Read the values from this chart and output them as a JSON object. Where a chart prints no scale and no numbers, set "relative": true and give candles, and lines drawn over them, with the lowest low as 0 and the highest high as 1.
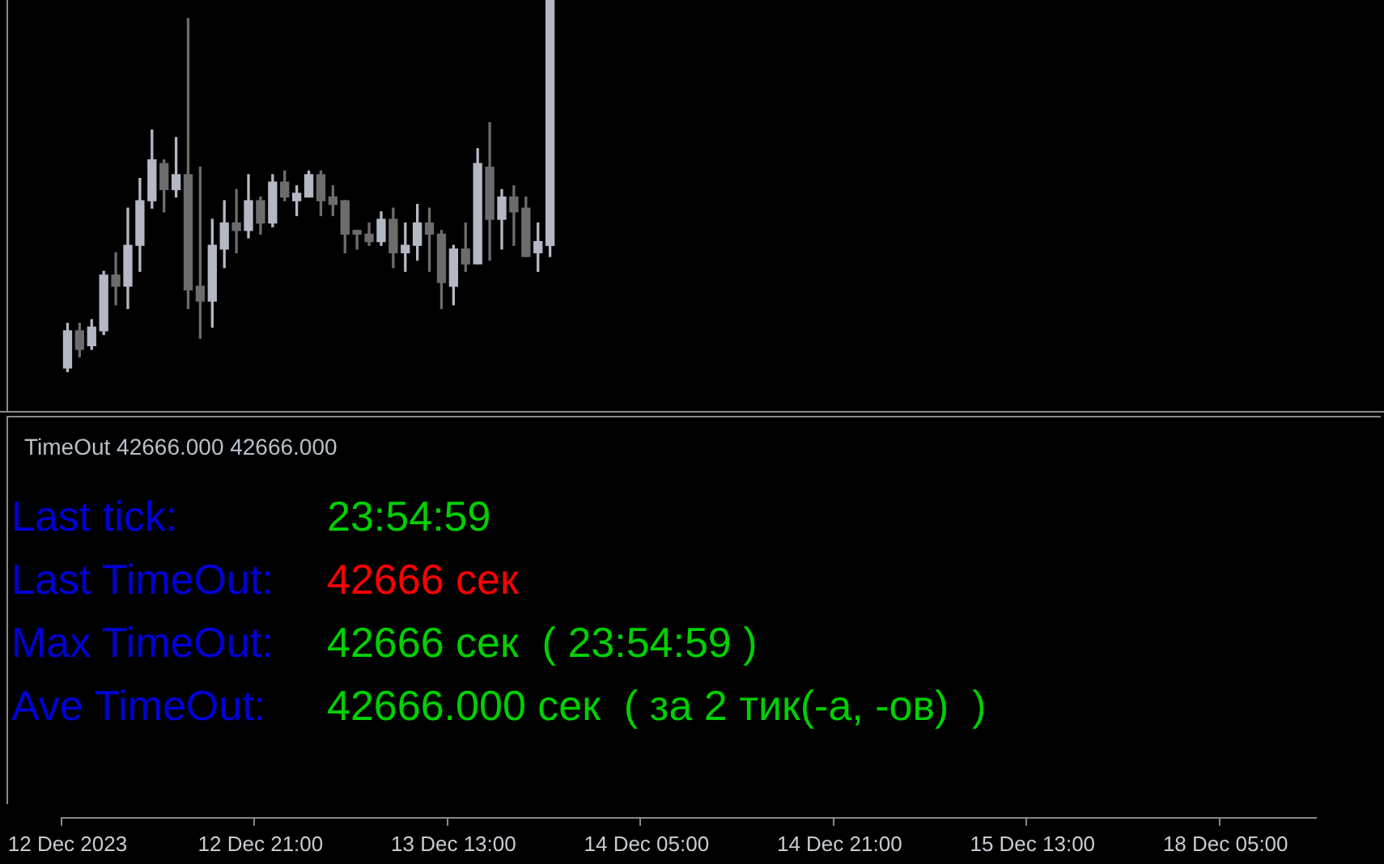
{
  "chart_data": [
    {
      "type": "candlestick",
      "relative": true,
      "categories": [
        "12 Dec 2023",
        null,
        null,
        null,
        null,
        null,
        null,
        null,
        null,
        null,
        null,
        null,
        null,
        null,
        null,
        null,
        "12 Dec 21:00",
        null,
        null,
        null,
        null,
        null,
        null,
        null,
        null,
        null,
        null,
        null,
        null,
        null,
        null,
        null,
        "13 Dec 13:00",
        null,
        null,
        null,
        null,
        null,
        null,
        null,
        null,
        null,
        null,
        null,
        null,
        null,
        null,
        null,
        "14 Dec 05:00",
        null,
        null,
        null,
        null,
        null,
        null,
        null,
        null,
        null,
        null,
        null,
        null,
        null,
        null,
        null,
        "14 Dec 21:00",
        null,
        null,
        null,
        null,
        null,
        null,
        null,
        null,
        null,
        null,
        null,
        null,
        null,
        null,
        null,
        "15 Dec 13:00",
        null,
        null,
        null,
        null,
        null,
        null,
        null,
        null,
        null,
        null,
        null,
        null,
        null,
        null,
        null,
        "18 Dec 05:00",
        null,
        null,
        null,
        null,
        null,
        null,
        null
      ],
      "ohlc": [
        [
          0.01,
          0.13,
          0,
          0.11
        ],
        [
          0.11,
          0.13,
          0.04,
          0.06
        ],
        [
          0.07,
          0.14,
          0.06,
          0.12
        ],
        [
          0.11,
          0.27,
          0.1,
          0.26
        ],
        [
          0.26,
          0.32,
          0.18,
          0.23
        ],
        [
          0.23,
          0.44,
          0.17,
          0.34
        ],
        [
          0.34,
          0.52,
          0.27,
          0.46
        ],
        [
          0.46,
          0.65,
          0.44,
          0.57
        ],
        [
          0.56,
          0.57,
          0.43,
          0.49
        ],
        [
          0.49,
          0.63,
          0.47,
          0.53
        ],
        [
          0.53,
          0.95,
          0.17,
          0.22
        ],
        [
          0.23,
          0.55,
          0.09,
          0.19
        ],
        [
          0.19,
          0.41,
          0.12,
          0.34
        ],
        [
          0.33,
          0.46,
          0.28,
          0.4
        ],
        [
          0.4,
          0.49,
          0.32,
          0.38
        ],
        [
          0.38,
          0.53,
          0.36,
          0.46
        ],
        [
          0.46,
          0.47,
          0.37,
          0.4
        ],
        [
          0.4,
          0.53,
          0.39,
          0.51
        ],
        [
          0.51,
          0.54,
          0.46,
          0.47
        ],
        [
          0.46,
          0.5,
          0.42,
          0.48
        ],
        [
          0.47,
          0.54,
          0.47,
          0.53
        ],
        [
          0.53,
          0.54,
          0.42,
          0.46
        ],
        [
          0.47,
          0.5,
          0.42,
          0.45
        ],
        [
          0.46,
          0.46,
          0.32,
          0.37
        ],
        [
          0.38,
          0.38,
          0.33,
          0.37
        ],
        [
          0.37,
          0.4,
          0.34,
          0.35
        ],
        [
          0.35,
          0.43,
          0.34,
          0.41
        ],
        [
          0.41,
          0.44,
          0.28,
          0.32
        ],
        [
          0.32,
          0.4,
          0.27,
          0.34
        ],
        [
          0.34,
          0.45,
          0.3,
          0.4
        ],
        [
          0.4,
          0.44,
          0.27,
          0.37
        ],
        [
          0.37,
          0.38,
          0.17,
          0.24
        ],
        [
          0.23,
          0.34,
          0.18,
          0.33
        ],
        [
          0.33,
          0.4,
          0.27,
          0.29
        ],
        [
          0.29,
          0.6,
          0.29,
          0.56
        ],
        [
          0.55,
          0.67,
          0.3,
          0.41
        ],
        [
          0.41,
          0.49,
          0.33,
          0.47
        ],
        [
          0.47,
          0.5,
          0.34,
          0.43
        ],
        [
          0.44,
          0.47,
          0.31,
          0.31
        ],
        [
          0.32,
          0.4,
          0.27,
          0.35
        ],
        [
          0.34,
          1,
          0.31,
          1
        ],
        null,
        null,
        null,
        null,
        null,
        null,
        null,
        null,
        null,
        null,
        null,
        null,
        null,
        null,
        null,
        null,
        null,
        null,
        null,
        null,
        null,
        null,
        null,
        null,
        null,
        null,
        null,
        null,
        null,
        null,
        null,
        null,
        null,
        null,
        null,
        null,
        null,
        null,
        null,
        null,
        null,
        null,
        null,
        null,
        null,
        null,
        null,
        null,
        null,
        null,
        null,
        null,
        null,
        null,
        null,
        null,
        null,
        null,
        null,
        null,
        null,
        null,
        null
      ],
      "colors": [
        "#b4b8c4",
        "#6c6c6c",
        "#b4b8c4",
        "#b4b8c4",
        "#6c6c6c",
        "#b4b8c4",
        "#b4b8c4",
        "#b4b8c4",
        "#6c6c6c",
        "#b4b8c4",
        "#6c6c6c",
        "#6c6c6c",
        "#b4b8c4",
        "#b4b8c4",
        "#6c6c6c",
        "#b4b8c4",
        "#6c6c6c",
        "#b4b8c4",
        "#6c6c6c",
        "#b4b8c4",
        "#b4b8c4",
        "#6c6c6c",
        "#6c6c6c",
        "#6c6c6c",
        "#6c6c6c",
        "#6c6c6c",
        "#b4b8c4",
        "#6c6c6c",
        "#b4b8c4",
        "#b4b8c4",
        "#6c6c6c",
        "#6c6c6c",
        "#b4b8c4",
        "#6c6c6c",
        "#b4b8c4",
        "#6c6c6c",
        "#b4b8c4",
        "#6c6c6c",
        "#6c6c6c",
        "#b4b8c4",
        "#b4b8c4",
        null,
        null,
        null,
        null,
        null,
        null,
        null,
        null,
        null,
        null,
        null,
        null,
        null,
        null,
        null,
        null,
        null,
        null,
        null,
        null,
        null,
        null,
        null,
        null,
        null,
        null,
        null,
        null,
        null,
        null,
        null,
        null,
        null,
        null,
        null,
        null,
        null,
        null,
        null,
        null,
        null,
        null,
        null,
        null,
        null,
        null,
        null,
        null,
        null,
        null,
        null,
        null,
        null,
        null,
        null,
        null,
        null,
        null,
        null,
        null,
        null,
        null,
        null
      ]
    },
    {
      "type": "other",
      "title": "TimeOut 42666.000 42666.000",
      "annotations": [
        "Last tick:",
        "23:54:59",
        "Last TimeOut:",
        "42666 сек",
        "Max TimeOut:",
        "42666 сек  ( 23:54:59 )",
        "Ave TimeOut:",
        "42666.000 сек  ( за 2 тик(-а, -ов)  )"
      ],
      "colors": [
        "#0000d8",
        "#00d000",
        "#0000d8",
        "#ff0000",
        "#0000d8",
        "#00d000",
        "#0000d8",
        "#00d000"
      ]
    }
  ]
}
